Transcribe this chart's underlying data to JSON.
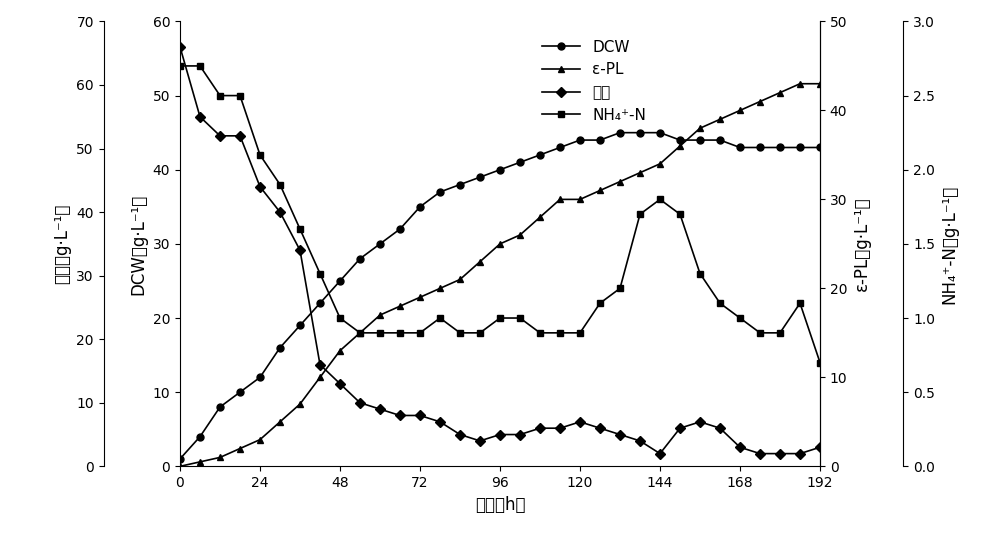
{
  "time": [
    0,
    6,
    12,
    18,
    24,
    30,
    36,
    42,
    48,
    54,
    60,
    66,
    72,
    78,
    84,
    90,
    96,
    102,
    108,
    114,
    120,
    126,
    132,
    138,
    144,
    150,
    156,
    162,
    168,
    174,
    180,
    186,
    192
  ],
  "DCW": [
    1,
    4,
    8,
    10,
    12,
    16,
    19,
    22,
    25,
    28,
    30,
    32,
    35,
    37,
    38,
    39,
    40,
    41,
    42,
    43,
    44,
    44,
    45,
    45,
    45,
    44,
    44,
    44,
    43,
    43,
    43,
    43,
    43
  ],
  "ePL": [
    0,
    0.5,
    1,
    2,
    3,
    5,
    7,
    10,
    13,
    15,
    17,
    18,
    19,
    20,
    21,
    23,
    25,
    26,
    28,
    30,
    30,
    31,
    32,
    33,
    34,
    36,
    38,
    39,
    40,
    41,
    42,
    43,
    43
  ],
  "glycerol": [
    66,
    55,
    52,
    52,
    44,
    40,
    34,
    16,
    13,
    10,
    9,
    8,
    8,
    7,
    5,
    4,
    5,
    5,
    6,
    6,
    7,
    6,
    5,
    4,
    2,
    6,
    7,
    6,
    3,
    2,
    2,
    2,
    3
  ],
  "NH4N": [
    2.7,
    2.7,
    2.5,
    2.5,
    2.1,
    1.9,
    1.6,
    1.3,
    1.0,
    0.9,
    0.9,
    0.9,
    0.9,
    1.0,
    0.9,
    0.9,
    1.0,
    1.0,
    0.9,
    0.9,
    0.9,
    1.1,
    1.2,
    1.7,
    1.8,
    1.7,
    1.3,
    1.1,
    1.0,
    0.9,
    0.9,
    1.1,
    0.7
  ],
  "glycerol_ylim": [
    0,
    70
  ],
  "DCW_ylim": [
    0,
    60
  ],
  "ePL_ylim": [
    0,
    50
  ],
  "NH4N_ylim": [
    0,
    3.0
  ],
  "ylabel_glycerol": "甘油（g·L⁻¹）",
  "ylabel_DCW": "DCW（g·L⁻¹）",
  "ylabel_ePL": "ε-PL（g·L⁻¹）",
  "ylabel_NH4N": "NH₄⁺-N（g·L⁻¹）",
  "xlabel": "时间（h）",
  "legend_DCW": "DCW",
  "legend_ePL": "ε-PL",
  "legend_glycerol": "甘油",
  "legend_NH4N": "NH₄⁺-N",
  "xticks": [
    0,
    24,
    48,
    72,
    96,
    120,
    144,
    168,
    192
  ],
  "DCW_yticks": [
    0,
    10,
    20,
    30,
    40,
    50,
    60
  ],
  "glycerol_yticks": [
    0,
    10,
    20,
    30,
    40,
    50,
    60,
    70
  ],
  "ePL_yticks": [
    0,
    10,
    20,
    30,
    40,
    50
  ],
  "NH4N_yticks": [
    0.0,
    0.5,
    1.0,
    1.5,
    2.0,
    2.5,
    3.0
  ],
  "color": "#000000",
  "bg_color": "#ffffff",
  "linewidth": 1.2,
  "markersize": 5
}
